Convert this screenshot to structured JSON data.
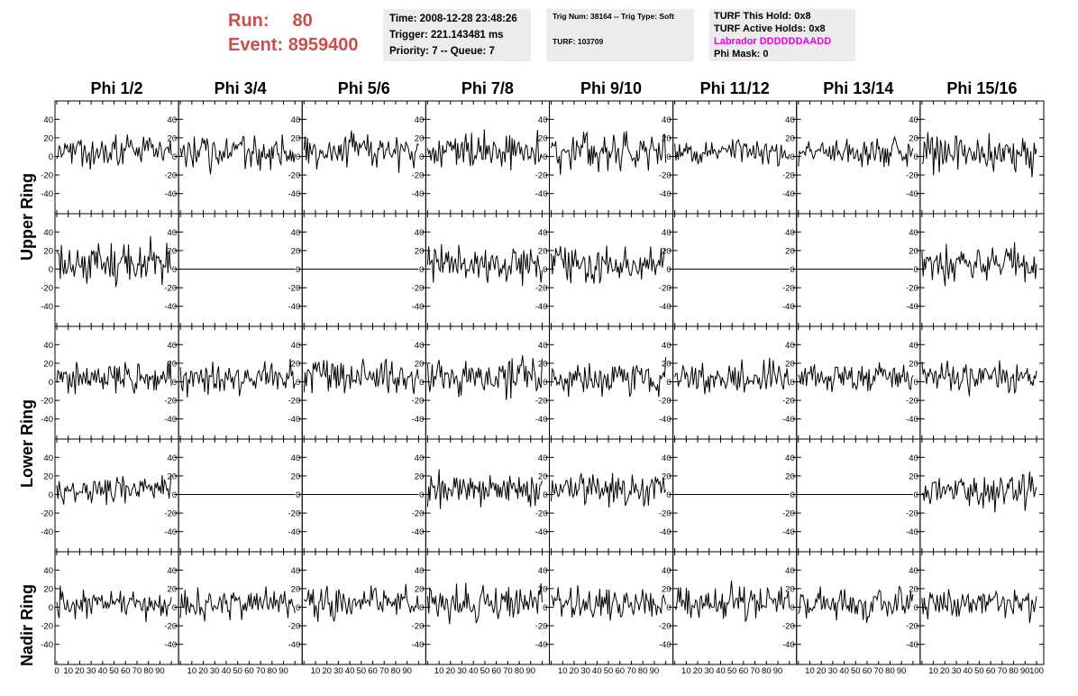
{
  "header": {
    "run_label": "Run:",
    "run_value": "80",
    "event_label": "Event:",
    "event_value": "8959400"
  },
  "info_panel_1": {
    "time": "Time: 2008-12-28 23:48:26",
    "trigger": "Trigger: 221.143481 ms",
    "priority": "Priority: 7 -- Queue: 7"
  },
  "info_panel_2": {
    "trig": "Trig Num: 38164 -- Trig Type: Soft",
    "turf": "TURF: 103709"
  },
  "info_panel_3": {
    "this_hold": "TURF This Hold: 0x8",
    "active_holds": "TURF Active Holds: 0x8",
    "labrador": "Labrador DDDDDDAADD",
    "phi_mask": "Phi Mask: 0"
  },
  "colors": {
    "header_red": "#c8504a",
    "labrador": "#e600e6",
    "panel_bg": "#ececec",
    "trace": "#000000"
  },
  "chart_data": {
    "type": "line",
    "columns": [
      "Phi 1/2",
      "Phi 3/4",
      "Phi 5/6",
      "Phi 7/8",
      "Phi 9/10",
      "Phi 11/12",
      "Phi 13/14",
      "Phi 15/16"
    ],
    "ring_labels": [
      {
        "text": "Upper Ring",
        "rows": [
          0,
          1
        ]
      },
      {
        "text": "Lower Ring",
        "rows": [
          2,
          3
        ]
      },
      {
        "text": "Nadir Ring",
        "rows": [
          4
        ]
      }
    ],
    "xlim": [
      0,
      100
    ],
    "ylim": [
      -50,
      50
    ],
    "yticks": [
      -40,
      -20,
      0,
      20,
      40
    ],
    "xtick_labels": [
      "0",
      "10",
      "20",
      "30",
      "40",
      "50",
      "60",
      "70",
      "80",
      "90",
      "100"
    ],
    "samples_per_trace": 100,
    "traces": [
      [
        {
          "amp": 17,
          "seed": 11
        },
        {
          "amp": 16,
          "seed": 12
        },
        {
          "amp": 16,
          "seed": 13
        },
        {
          "amp": 17,
          "seed": 14
        },
        {
          "amp": 19,
          "seed": 15
        },
        {
          "amp": 12,
          "seed": 16
        },
        {
          "amp": 14,
          "seed": 17
        },
        {
          "amp": 20,
          "seed": 18
        }
      ],
      [
        {
          "amp": 22,
          "seed": 21
        },
        {
          "amp": 0,
          "seed": 22
        },
        {
          "amp": 0,
          "seed": 23
        },
        {
          "amp": 18,
          "seed": 24
        },
        {
          "amp": 18,
          "seed": 25
        },
        {
          "amp": 0,
          "seed": 26
        },
        {
          "amp": 0,
          "seed": 27
        },
        {
          "amp": 18,
          "seed": 28
        }
      ],
      [
        {
          "amp": 16,
          "seed": 31
        },
        {
          "amp": 16,
          "seed": 32
        },
        {
          "amp": 17,
          "seed": 33
        },
        {
          "amp": 17,
          "seed": 34
        },
        {
          "amp": 16,
          "seed": 35
        },
        {
          "amp": 16,
          "seed": 36
        },
        {
          "amp": 16,
          "seed": 37
        },
        {
          "amp": 16,
          "seed": 38
        }
      ],
      [
        {
          "amp": 15,
          "seed": 41
        },
        {
          "amp": 0,
          "seed": 42
        },
        {
          "amp": 0,
          "seed": 43
        },
        {
          "amp": 17,
          "seed": 44
        },
        {
          "amp": 16,
          "seed": 45
        },
        {
          "amp": 0,
          "seed": 46
        },
        {
          "amp": 0,
          "seed": 47
        },
        {
          "amp": 17,
          "seed": 48
        }
      ],
      [
        {
          "amp": 15,
          "seed": 51
        },
        {
          "amp": 14,
          "seed": 52
        },
        {
          "amp": 16,
          "seed": 53
        },
        {
          "amp": 16,
          "seed": 54
        },
        {
          "amp": 15,
          "seed": 55
        },
        {
          "amp": 17,
          "seed": 56
        },
        {
          "amp": 16,
          "seed": 57
        },
        {
          "amp": 14,
          "seed": 58
        }
      ]
    ]
  }
}
